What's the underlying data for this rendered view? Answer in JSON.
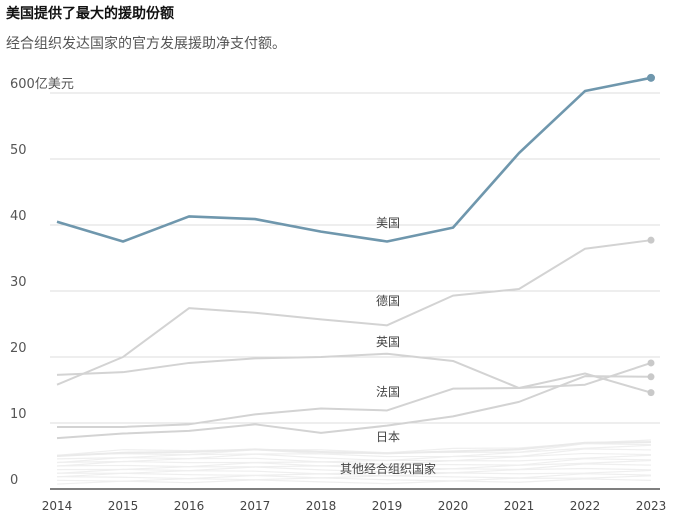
{
  "title": "美国提供了最大的援助份额",
  "subtitle": "经合组织发达国家的官方发展援助净支付额。",
  "chart_data": {
    "type": "line",
    "x": [
      2014,
      2015,
      2016,
      2017,
      2018,
      2019,
      2020,
      2021,
      2022,
      2023
    ],
    "ylim": [
      0,
      65
    ],
    "y_ticks": [
      0,
      10,
      20,
      30,
      40,
      50,
      60
    ],
    "y_tick_labels": [
      "0",
      "10",
      "20",
      "30",
      "40",
      "50",
      "600亿美元"
    ],
    "grid": true,
    "series": [
      {
        "name": "美国",
        "color": "#6f97ad",
        "values": [
          40.5,
          37.5,
          41.3,
          40.9,
          39.0,
          37.5,
          39.6,
          50.9,
          60.3,
          62.3
        ]
      },
      {
        "name": "德国",
        "color": "#d3d3d3",
        "values": [
          15.8,
          20.0,
          27.4,
          26.7,
          25.7,
          24.8,
          29.3,
          30.3,
          36.4,
          37.7
        ]
      },
      {
        "name": "英国",
        "color": "#d3d3d3",
        "values": [
          17.3,
          17.7,
          19.1,
          19.8,
          20.0,
          20.5,
          19.4,
          15.3,
          15.8,
          19.1
        ]
      },
      {
        "name": "法国",
        "color": "#d3d3d3",
        "values": [
          9.4,
          9.4,
          9.8,
          11.3,
          12.2,
          11.9,
          15.2,
          15.3,
          17.5,
          14.6
        ]
      },
      {
        "name": "日本",
        "color": "#d3d3d3",
        "values": [
          7.7,
          8.4,
          8.8,
          9.8,
          8.5,
          9.6,
          11.0,
          13.2,
          17.1,
          17.0
        ]
      },
      {
        "name": "其他经合组织国家",
        "color": "#eaeaea",
        "values": [
          5.0,
          5.5,
          5.6,
          6.0,
          5.6,
          5.4,
          5.7,
          6.0,
          7.0,
          7.1
        ]
      }
    ]
  },
  "colors": {
    "highlight": "#6f97ad",
    "muted": "#d3d3d3",
    "grid": "#dddddd",
    "axis": "#333333"
  }
}
